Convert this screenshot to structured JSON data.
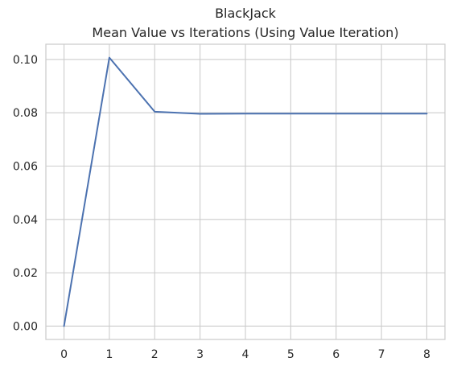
{
  "chart_data": {
    "type": "line",
    "title": "BlackJack",
    "subtitle": "Mean Value vs Iterations (Using Value Iteration)",
    "xlabel": "",
    "ylabel": "",
    "x": [
      0,
      1,
      2,
      3,
      4,
      5,
      6,
      7,
      8
    ],
    "series": [
      {
        "values": [
          0.0,
          0.1007,
          0.0804,
          0.0796,
          0.0797,
          0.0797,
          0.0797,
          0.0797,
          0.0797
        ]
      }
    ],
    "xlim": [
      -0.4,
      8.4
    ],
    "ylim": [
      -0.005,
      0.1057
    ],
    "x_ticks": [
      0,
      1,
      2,
      3,
      4,
      5,
      6,
      7,
      8
    ],
    "x_tick_labels": [
      "0",
      "1",
      "2",
      "3",
      "4",
      "5",
      "6",
      "7",
      "8"
    ],
    "y_ticks": [
      0.0,
      0.02,
      0.04,
      0.06,
      0.08,
      0.1
    ],
    "y_tick_labels": [
      "0.00",
      "0.02",
      "0.04",
      "0.06",
      "0.08",
      "0.10"
    ],
    "grid": true,
    "line_color": "#4c72b0"
  }
}
